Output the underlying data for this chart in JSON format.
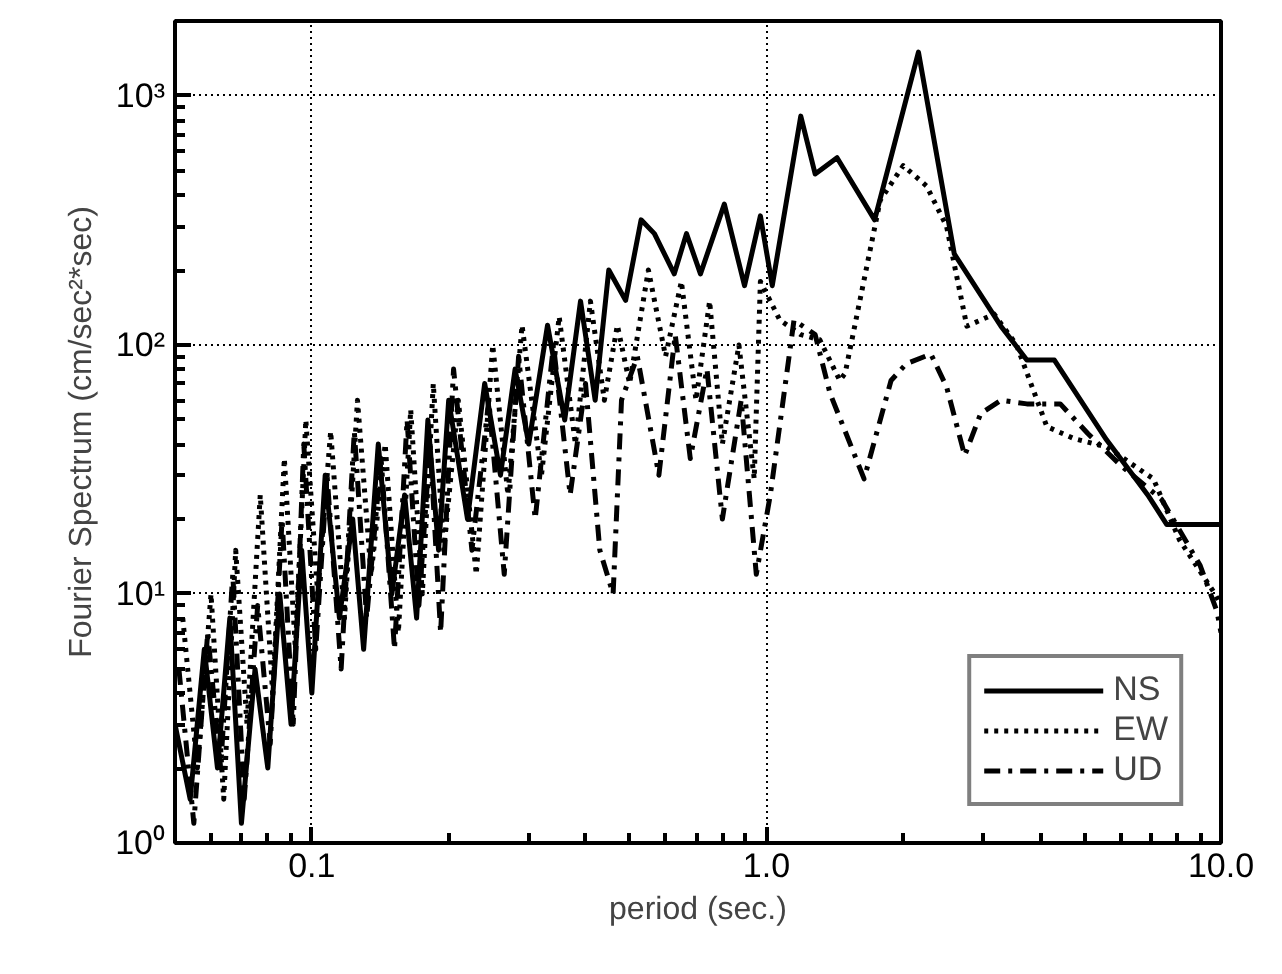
{
  "chart_data": {
    "type": "line",
    "xlabel": "period (sec.)",
    "ylabel": "Fourier Spectrum (cm/sec²*sec)",
    "log": "xy",
    "grid": true,
    "legend": "bottom right",
    "xlim": [
      0.05,
      10
    ],
    "ylim": [
      1,
      2000
    ],
    "xticks": [
      0.1,
      {
        "value": 1,
        "label": "1.0"
      },
      {
        "value": 10,
        "label": "10.0"
      }
    ],
    "yticks": [
      {
        "value": 1,
        "label": "10⁰"
      },
      {
        "value": 10,
        "label": "10¹"
      },
      {
        "value": 100,
        "label": "10²"
      },
      {
        "value": 1000,
        "label": "10³"
      }
    ],
    "series": [
      {
        "name": "NS",
        "color": "#000000",
        "line_style": "solid",
        "x": [
          0.05,
          0.054,
          0.058,
          0.062,
          0.066,
          0.07,
          0.075,
          0.08,
          0.085,
          0.09,
          0.095,
          0.1,
          0.107,
          0.115,
          0.123,
          0.13,
          0.14,
          0.15,
          0.16,
          0.17,
          0.18,
          0.19,
          0.2,
          0.22,
          0.24,
          0.26,
          0.28,
          0.3,
          0.33,
          0.36,
          0.39,
          0.42,
          0.45,
          0.49,
          0.53,
          0.567,
          0.627,
          0.667,
          0.716,
          0.808,
          0.895,
          0.97,
          1.03,
          1.19,
          1.28,
          1.43,
          1.73,
          2.16,
          2.59,
          3.28,
          3.74,
          4.3,
          5.6,
          6.9,
          7.6,
          9.7,
          10.0
        ],
        "values": [
          3,
          1.5,
          6,
          2,
          8,
          1.2,
          5,
          2,
          10,
          3,
          15,
          4,
          30,
          8,
          20,
          6,
          40,
          10,
          25,
          8,
          50,
          15,
          60,
          20,
          70,
          30,
          80,
          40,
          120,
          50,
          150,
          60,
          200,
          151,
          318,
          280,
          193,
          280,
          193,
          368,
          173,
          330,
          173,
          830,
          486,
          565,
          318,
          1500,
          232,
          119,
          87,
          87,
          41.6,
          25,
          19,
          19,
          19
        ]
      },
      {
        "name": "EW",
        "color": "#000000",
        "line_style": "dotted",
        "x": [
          0.052,
          0.056,
          0.06,
          0.064,
          0.068,
          0.072,
          0.077,
          0.082,
          0.087,
          0.092,
          0.097,
          0.103,
          0.11,
          0.118,
          0.126,
          0.135,
          0.145,
          0.155,
          0.165,
          0.175,
          0.185,
          0.195,
          0.21,
          0.23,
          0.25,
          0.27,
          0.29,
          0.32,
          0.35,
          0.38,
          0.41,
          0.44,
          0.47,
          0.5,
          0.55,
          0.6,
          0.65,
          0.7,
          0.75,
          0.8,
          0.87,
          0.94,
          0.97,
          1.07,
          1.19,
          1.31,
          1.45,
          1.49,
          1.78,
          2.0,
          2.25,
          2.49,
          2.76,
          3.17,
          3.55,
          4.14,
          4.76,
          5.6,
          7.1,
          8.1,
          9.7,
          10.0
        ],
        "values": [
          8,
          2,
          10,
          1.5,
          15,
          3,
          25,
          4,
          35,
          6,
          50,
          10,
          45,
          8,
          60,
          12,
          40,
          7,
          55,
          10,
          70,
          15,
          60,
          12,
          100,
          25,
          120,
          30,
          130,
          40,
          150,
          60,
          120,
          70,
          200,
          90,
          180,
          60,
          150,
          40,
          100,
          29,
          180,
          126,
          110,
          105,
          72,
          77,
          382,
          525,
          435,
          300,
          119,
          133,
          100,
          47,
          42,
          39,
          29,
          16.5,
          10,
          9
        ]
      },
      {
        "name": "UD",
        "color": "#000000",
        "line_style": "dashdot",
        "x": [
          0.051,
          0.055,
          0.059,
          0.063,
          0.067,
          0.071,
          0.076,
          0.081,
          0.086,
          0.091,
          0.096,
          0.102,
          0.108,
          0.116,
          0.124,
          0.132,
          0.142,
          0.152,
          0.162,
          0.172,
          0.182,
          0.192,
          0.205,
          0.225,
          0.245,
          0.265,
          0.285,
          0.31,
          0.34,
          0.37,
          0.4,
          0.43,
          0.46,
          0.48,
          0.52,
          0.58,
          0.63,
          0.68,
          0.74,
          0.8,
          0.88,
          0.95,
          1.02,
          1.15,
          1.28,
          1.38,
          1.64,
          1.88,
          2.03,
          2.3,
          2.49,
          2.73,
          2.96,
          3.28,
          3.74,
          4.43,
          5.1,
          6.0,
          7.4,
          9.0,
          9.8,
          10.0
        ],
        "values": [
          5,
          1.2,
          7,
          2,
          12,
          1.5,
          9,
          2.5,
          20,
          3,
          40,
          6,
          30,
          5,
          45,
          8,
          35,
          6,
          50,
          9,
          40,
          7,
          80,
          15,
          60,
          12,
          90,
          20,
          100,
          25,
          70,
          15,
          10,
          60,
          90,
          30,
          110,
          35,
          80,
          20,
          60,
          12,
          25,
          126,
          110,
          64,
          29,
          72,
          84,
          92,
          68,
          36,
          53,
          60,
          58,
          58,
          44,
          33,
          24,
          13,
          8.5,
          7
        ]
      }
    ]
  }
}
